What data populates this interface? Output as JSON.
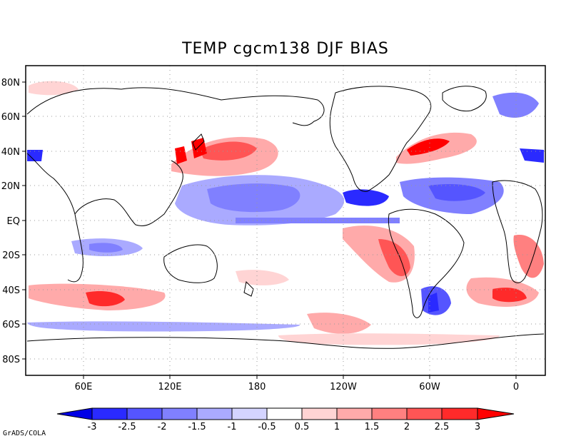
{
  "title": "TEMP cgcm138 DJF  BIAS",
  "credit": "GrADS/COLA",
  "map": {
    "lat_ticks": [
      "80N",
      "60N",
      "40N",
      "20N",
      "EQ",
      "20S",
      "40S",
      "60S",
      "80S"
    ],
    "lon_ticks": [
      "60E",
      "120E",
      "180",
      "120W",
      "60W",
      "0"
    ]
  },
  "colorbar": {
    "labels": [
      "-3",
      "-2.5",
      "-2",
      "-1.5",
      "-1",
      "-0.5",
      "0.5",
      "1",
      "1.5",
      "2",
      "2.5",
      "3"
    ],
    "colors": [
      "#0000e6",
      "#2a2aff",
      "#5555ff",
      "#8080ff",
      "#aaaaff",
      "#d4d4ff",
      "#ffffff",
      "#ffd4d4",
      "#ffaaaa",
      "#ff8080",
      "#ff5555",
      "#ff2a2a",
      "#ff0000"
    ]
  }
}
